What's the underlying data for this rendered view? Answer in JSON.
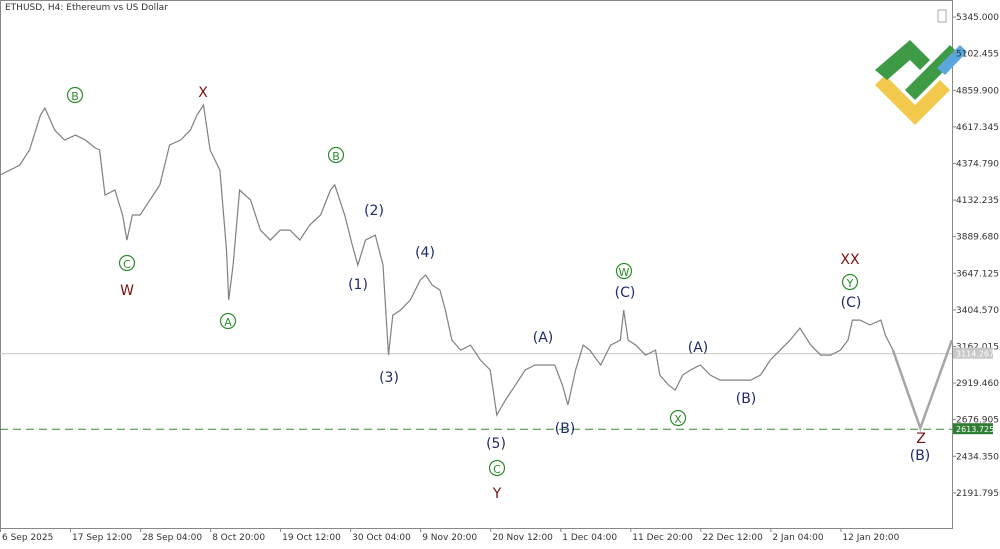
{
  "chart_data": {
    "type": "line",
    "title": "ETHUSD, H4:  Ethereum vs US Dollar",
    "xlim": [
      0,
      870
    ],
    "xticks": [
      {
        "value": 0,
        "label": "6 Sep 2025"
      },
      {
        "value": 64,
        "label": "17 Sep 12:00"
      },
      {
        "value": 128,
        "label": "28 Sep 04:00"
      },
      {
        "value": 192,
        "label": "8 Oct 20:00"
      },
      {
        "value": 256,
        "label": "19 Oct 12:00"
      },
      {
        "value": 320,
        "label": "30 Oct 04:00"
      },
      {
        "value": 384,
        "label": "9 Nov 20:00"
      },
      {
        "value": 448,
        "label": "20 Nov 12:00"
      },
      {
        "value": 512,
        "label": "1 Dec 04:00"
      },
      {
        "value": 576,
        "label": "11 Dec 20:00"
      },
      {
        "value": 640,
        "label": "22 Dec 12:00"
      },
      {
        "value": 704,
        "label": "2 Jan 04:00"
      },
      {
        "value": 768,
        "label": "12 Jan 20:00"
      }
    ],
    "ylim": [
      1959,
      5458
    ],
    "yticks": [
      {
        "value": 5345,
        "label": "5345.000"
      },
      {
        "value": 5102.455,
        "label": "5102.455"
      },
      {
        "value": 4859.9,
        "label": "4859.900"
      },
      {
        "value": 4617.345,
        "label": "4617.345"
      },
      {
        "value": 4374.79,
        "label": "4374.790"
      },
      {
        "value": 4132.235,
        "label": "4132.235"
      },
      {
        "value": 3889.68,
        "label": "3889.680"
      },
      {
        "value": 3647.125,
        "label": "3647.125"
      },
      {
        "value": 3404.57,
        "label": "3404.570"
      },
      {
        "value": 3162.015,
        "label": "3162.015"
      },
      {
        "value": 2919.46,
        "label": "2919.460"
      },
      {
        "value": 2676.905,
        "label": "2676.905"
      },
      {
        "value": 2434.35,
        "label": "2434.350"
      },
      {
        "value": 2191.795,
        "label": "2191.795"
      }
    ],
    "current_price": 3114.267,
    "level": 2613.725,
    "series": [
      {
        "color": "#808080",
        "x": [
          0,
          9,
          18,
          27,
          37,
          41,
          50,
          59,
          69,
          78,
          87,
          91,
          96,
          105,
          112,
          116,
          121,
          128,
          137,
          146,
          155,
          165,
          174,
          180,
          186,
          192,
          201,
          207,
          209,
          213,
          219,
          229,
          238,
          247,
          256,
          265,
          274,
          283,
          293,
          302,
          306,
          315,
          322,
          327,
          334,
          343,
          350,
          355,
          359,
          366,
          375,
          384,
          389,
          395,
          402,
          407,
          413,
          421,
          430,
          439,
          448,
          454,
          462,
          471,
          480,
          489,
          498,
          507,
          514,
          519,
          526,
          533,
          539,
          549,
          558,
          567,
          570,
          574,
          581,
          590,
          599,
          603,
          611,
          617,
          624,
          631,
          640,
          649,
          658,
          667,
          677,
          686,
          695,
          704,
          713,
          722,
          731,
          741,
          750,
          759,
          768,
          775,
          779,
          786,
          795,
          805,
          809,
          816
        ],
        "values": [
          4298,
          4331,
          4364,
          4464,
          4696,
          4742,
          4596,
          4530,
          4563,
          4530,
          4477,
          4464,
          4165,
          4199,
          4033,
          3867,
          4033,
          4033,
          4132,
          4232,
          4497,
          4530,
          4596,
          4696,
          4762,
          4464,
          4331,
          3801,
          3470,
          3701,
          4199,
          4132,
          3933,
          3867,
          3933,
          3933,
          3867,
          3967,
          4033,
          4199,
          4232,
          4033,
          3834,
          3701,
          3867,
          3900,
          3701,
          3105,
          3370,
          3403,
          3470,
          3602,
          3635,
          3569,
          3536,
          3403,
          3204,
          3138,
          3171,
          3072,
          3006,
          2707,
          2807,
          2906,
          3006,
          3039,
          3039,
          3039,
          2906,
          2774,
          3006,
          3171,
          3138,
          3039,
          3171,
          3204,
          3403,
          3204,
          3171,
          3105,
          3138,
          2973,
          2906,
          2873,
          2973,
          3006,
          3039,
          2973,
          2939,
          2939,
          2939,
          2939,
          2973,
          3072,
          3138,
          3204,
          3284,
          3171,
          3105,
          3105,
          3138,
          3204,
          3337,
          3337,
          3304,
          3337,
          3238,
          3138
        ]
      },
      {
        "color": "#a6a6a6",
        "x": [
          816,
          841,
          870
        ],
        "values": [
          3138,
          2621,
          3204
        ]
      }
    ],
    "annotations": [
      "B",
      "X",
      "C",
      "W",
      "A",
      "B",
      "(2)",
      "(1)",
      "(3)",
      "(4)",
      "(5)",
      "C",
      "Y",
      "(A)",
      "(B)",
      "W",
      "(C)",
      "X",
      "(A)",
      "(B)",
      "XX",
      "Y",
      "(C)",
      "Z",
      "(B)"
    ]
  }
}
